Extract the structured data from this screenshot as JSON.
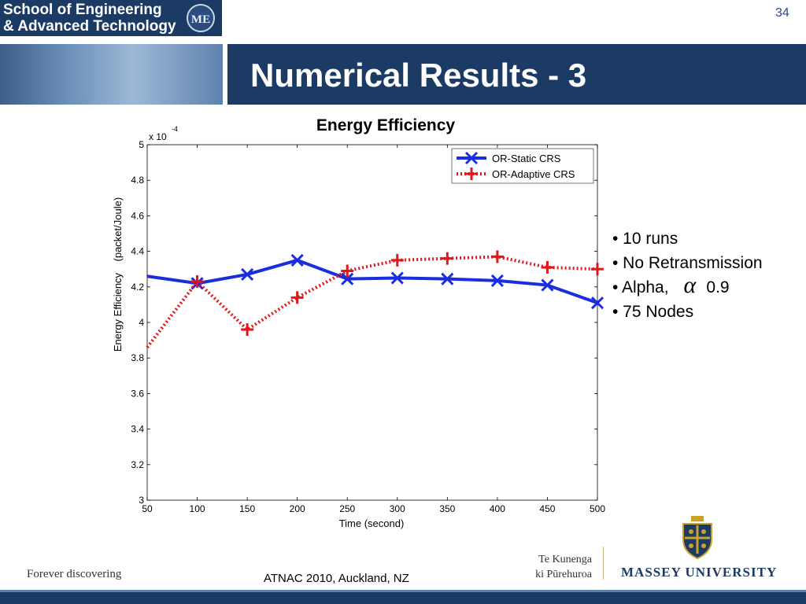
{
  "header": {
    "school_line1": "School of Engineering",
    "school_line2": "& Advanced Technology",
    "emblem_text": "ME",
    "slide_title": "Numerical Results - 3",
    "slide_number": "34"
  },
  "bullets": [
    "• 10 runs",
    "• No Retransmission",
    "• Alpha,",
    "0.9",
    "• 75 Nodes"
  ],
  "footer": {
    "left_text": "Forever discovering",
    "center_text": "ATNAC 2010, Auckland, NZ",
    "tekunenga_line1": "Te Kunenga",
    "tekunenga_line2": "ki Pūrehuroa",
    "university": "MASSEY UNIVERSITY"
  },
  "colors": {
    "navy": "#1b3a64",
    "series_static": "#1a2ee0",
    "series_adaptive": "#e3141b"
  },
  "chart_data": {
    "type": "line",
    "title": "Energy Efficiency",
    "xlabel": "Time (second)",
    "ylabel": "Energy Efficiency    (packet/Joule)",
    "exponent_label": "x 10",
    "exponent_power": "-4",
    "xlim": [
      50,
      500
    ],
    "ylim": [
      3,
      5
    ],
    "x_ticks": [
      "50",
      "100",
      "150",
      "200",
      "250",
      "300",
      "350",
      "400",
      "450",
      "500"
    ],
    "y_ticks": [
      "3",
      "3.2",
      "3.4",
      "3.6",
      "3.8",
      "4",
      "4.2",
      "4.4",
      "4.6",
      "4.8",
      "5"
    ],
    "legend_position": "top-right",
    "grid": false,
    "series": [
      {
        "name": "OR-Static CRS",
        "color": "#1a2ee0",
        "line": "solid",
        "marker": "x",
        "x": [
          50,
          100,
          150,
          200,
          250,
          300,
          350,
          400,
          450,
          500
        ],
        "y": [
          4.26,
          4.22,
          4.27,
          4.35,
          4.245,
          4.25,
          4.245,
          4.235,
          4.21,
          4.11
        ],
        "marker_x": [
          100,
          150,
          200,
          250,
          300,
          350,
          400,
          450,
          500
        ]
      },
      {
        "name": "OR-Adaptive CRS",
        "color": "#e3141b",
        "line": "dotted",
        "marker": "+",
        "x": [
          50,
          100,
          150,
          200,
          250,
          300,
          350,
          400,
          450,
          500
        ],
        "y": [
          3.86,
          4.23,
          3.96,
          4.14,
          4.29,
          4.35,
          4.36,
          4.37,
          4.31,
          4.3
        ],
        "marker_x": [
          100,
          150,
          200,
          250,
          300,
          350,
          400,
          450,
          500
        ]
      }
    ]
  }
}
